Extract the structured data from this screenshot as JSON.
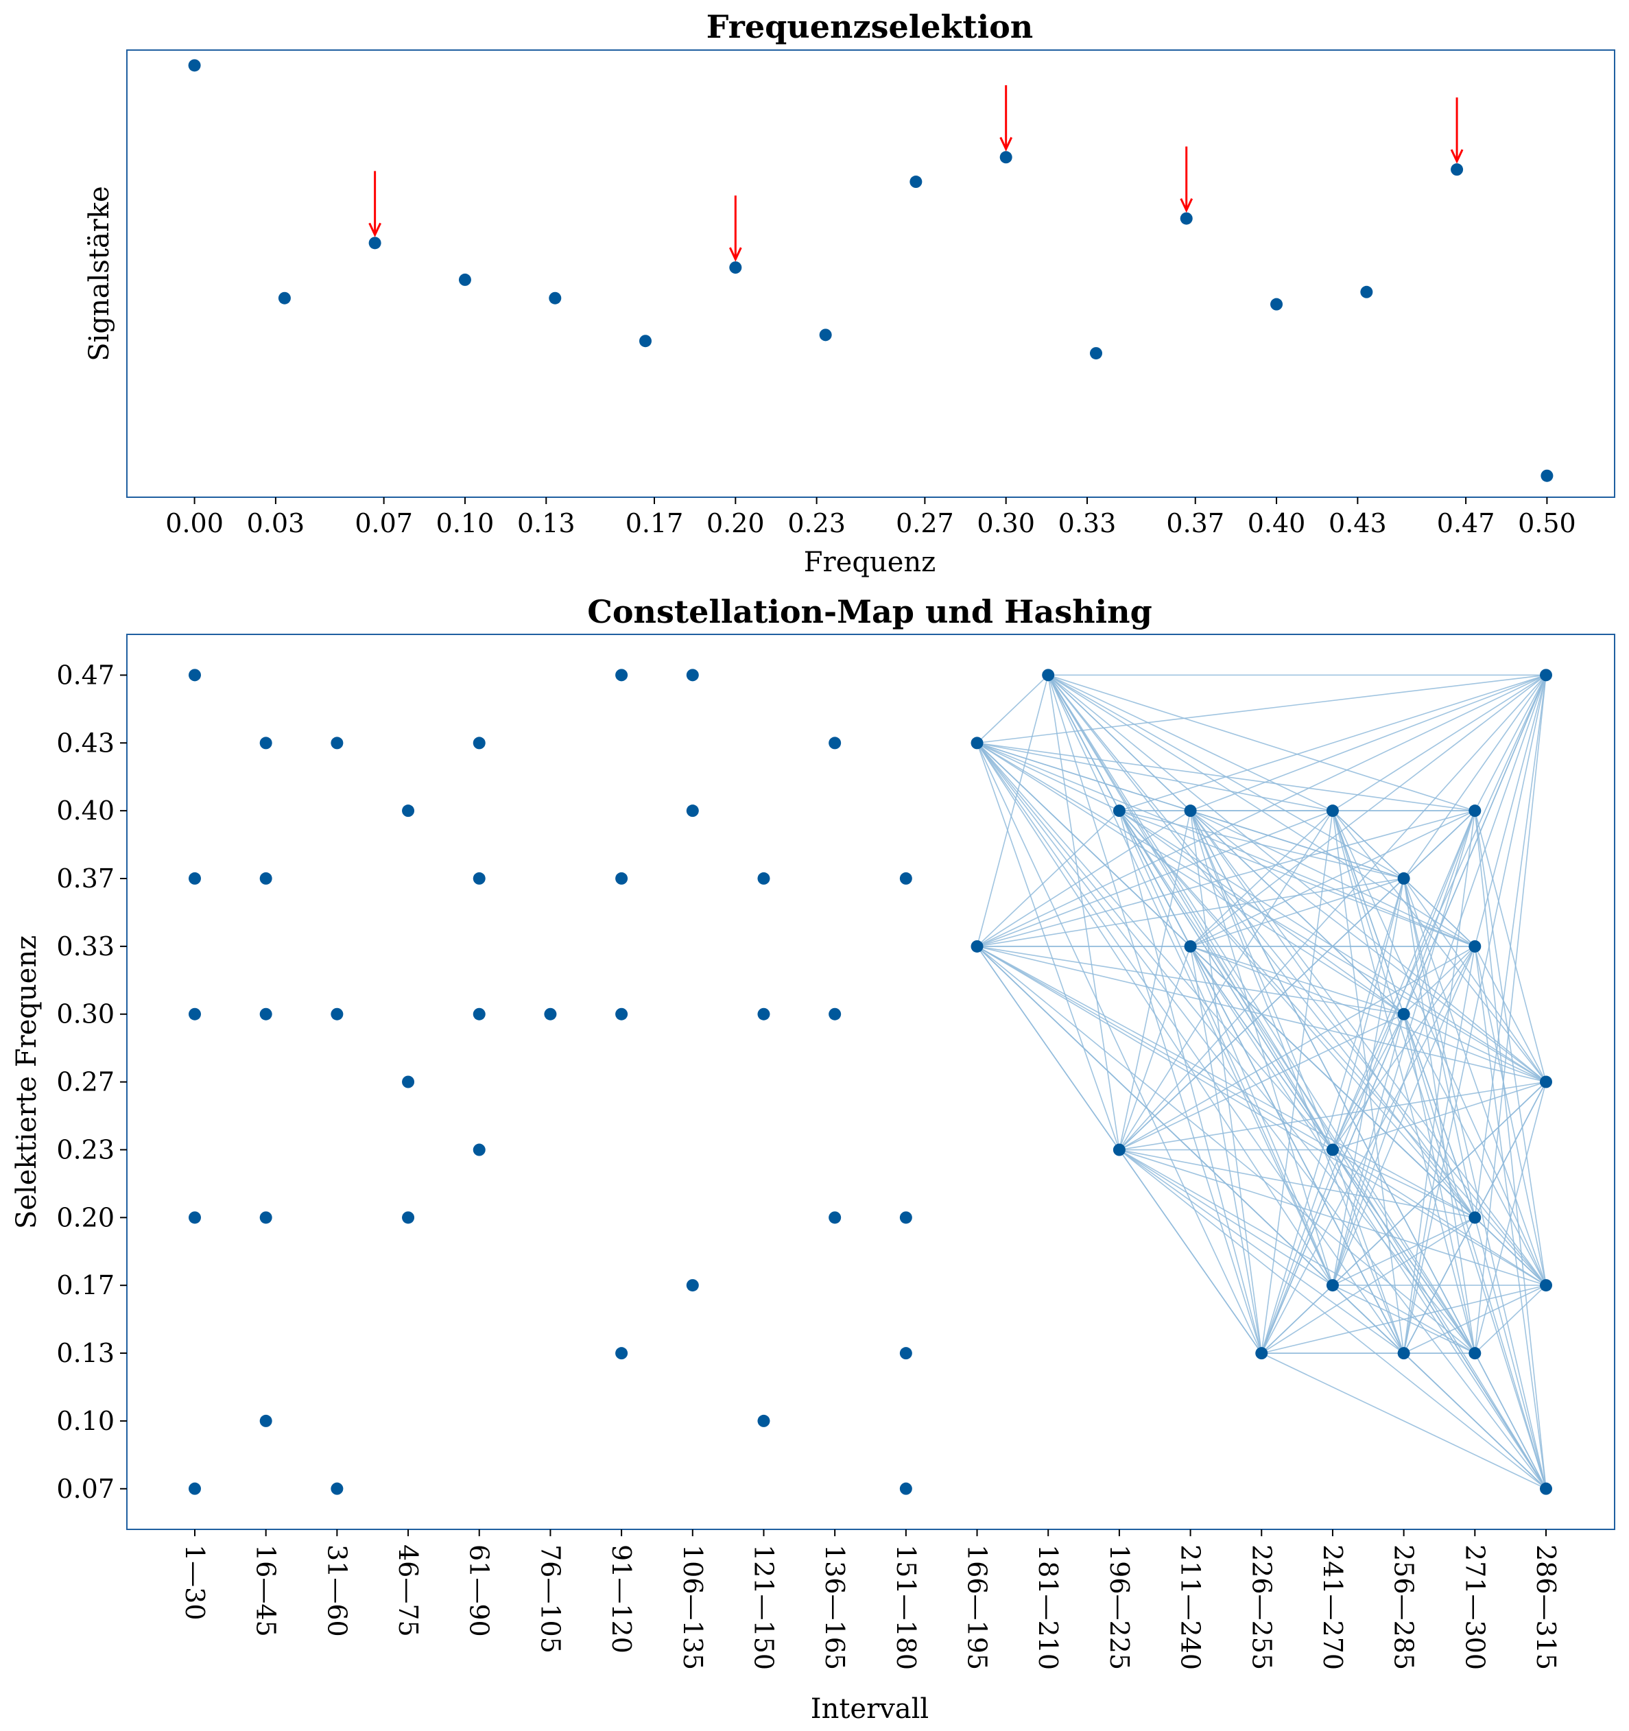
{
  "colors": {
    "point": "#00589b",
    "frame": "#1f5fa0",
    "arrow": "#ff0000",
    "hash_line": "#8fbadb"
  },
  "chart_data": [
    {
      "type": "scatter",
      "title": "Frequenzselektion",
      "xlabel": "Frequenz",
      "ylabel": "Signalstärke",
      "x_ticks": [
        "0.00",
        "0.03",
        "0.07",
        "0.10",
        "0.13",
        "0.17",
        "0.20",
        "0.23",
        "0.27",
        "0.30",
        "0.33",
        "0.37",
        "0.40",
        "0.43",
        "0.47",
        "0.50"
      ],
      "y_ticks_shown": false,
      "xlim": [
        -0.025,
        0.525
      ],
      "ylim": [
        0.075,
        0.805
      ],
      "points": [
        {
          "x": 0.0,
          "y": 0.78
        },
        {
          "x": 0.0333,
          "y": 0.4
        },
        {
          "x": 0.0667,
          "y": 0.49
        },
        {
          "x": 0.1,
          "y": 0.43
        },
        {
          "x": 0.1333,
          "y": 0.4
        },
        {
          "x": 0.1667,
          "y": 0.33
        },
        {
          "x": 0.2,
          "y": 0.45
        },
        {
          "x": 0.2333,
          "y": 0.34
        },
        {
          "x": 0.2667,
          "y": 0.59
        },
        {
          "x": 0.3,
          "y": 0.63
        },
        {
          "x": 0.3333,
          "y": 0.31
        },
        {
          "x": 0.3667,
          "y": 0.53
        },
        {
          "x": 0.4,
          "y": 0.39
        },
        {
          "x": 0.4333,
          "y": 0.41
        },
        {
          "x": 0.4667,
          "y": 0.61
        },
        {
          "x": 0.5,
          "y": 0.11
        }
      ],
      "annotations": [
        {
          "type": "arrow",
          "x": 0.0667,
          "y": 0.49
        },
        {
          "type": "arrow",
          "x": 0.2,
          "y": 0.45
        },
        {
          "type": "arrow",
          "x": 0.3,
          "y": 0.63
        },
        {
          "type": "arrow",
          "x": 0.3667,
          "y": 0.53
        },
        {
          "type": "arrow",
          "x": 0.4667,
          "y": 0.61
        }
      ]
    },
    {
      "type": "scatter",
      "title": "Constellation-Map und Hashing",
      "xlabel": "Intervall",
      "ylabel": "Selektierte Frequenz",
      "categories": [
        "1—30",
        "16—45",
        "31—60",
        "46—75",
        "61—90",
        "76—105",
        "91—120",
        "106—135",
        "121—150",
        "136—165",
        "151—180",
        "166—195",
        "181—210",
        "196—225",
        "211—240",
        "226—255",
        "241—270",
        "256—285",
        "271—300",
        "286—315"
      ],
      "y_ticks": [
        "0.07",
        "0.10",
        "0.13",
        "0.17",
        "0.20",
        "0.23",
        "0.27",
        "0.30",
        "0.33",
        "0.37",
        "0.40",
        "0.43",
        "0.47"
      ],
      "ylim": [
        0.0467,
        0.4867
      ],
      "points": [
        {
          "x": "1—30",
          "y": [
            0.4667,
            0.3667,
            0.3,
            0.2,
            0.0667
          ]
        },
        {
          "x": "16—45",
          "y": [
            0.4333,
            0.3667,
            0.3,
            0.2,
            0.1
          ]
        },
        {
          "x": "31—60",
          "y": [
            0.4333,
            0.3,
            0.0667
          ]
        },
        {
          "x": "46—75",
          "y": [
            0.4,
            0.2667,
            0.2
          ]
        },
        {
          "x": "61—90",
          "y": [
            0.4333,
            0.3667,
            0.3,
            0.2333
          ]
        },
        {
          "x": "76—105",
          "y": [
            0.3
          ]
        },
        {
          "x": "91—120",
          "y": [
            0.4667,
            0.3667,
            0.3,
            0.1333
          ]
        },
        {
          "x": "106—135",
          "y": [
            0.4667,
            0.4,
            0.1667
          ]
        },
        {
          "x": "121—150",
          "y": [
            0.3667,
            0.3,
            0.1
          ]
        },
        {
          "x": "136—165",
          "y": [
            0.4333,
            0.3,
            0.2
          ]
        },
        {
          "x": "151—180",
          "y": [
            0.3667,
            0.2,
            0.1333,
            0.0667
          ]
        },
        {
          "x": "166—195",
          "y": [
            0.4333,
            0.3333
          ]
        },
        {
          "x": "181—210",
          "y": [
            0.4667
          ]
        },
        {
          "x": "196—225",
          "y": [
            0.4,
            0.2333
          ]
        },
        {
          "x": "211—240",
          "y": [
            0.4,
            0.3333
          ]
        },
        {
          "x": "226—255",
          "y": [
            0.1333
          ]
        },
        {
          "x": "241—270",
          "y": [
            0.4,
            0.2333,
            0.1667
          ]
        },
        {
          "x": "256—285",
          "y": [
            0.3667,
            0.3,
            0.1333
          ]
        },
        {
          "x": "271—300",
          "y": [
            0.4,
            0.3333,
            0.2,
            0.1333
          ]
        },
        {
          "x": "286—315",
          "y": [
            0.4667,
            0.2667,
            0.1667,
            0.0667
          ]
        }
      ],
      "hash_links": {
        "from_interval_index": 11,
        "all_pairs_between_later_points": true
      }
    }
  ]
}
